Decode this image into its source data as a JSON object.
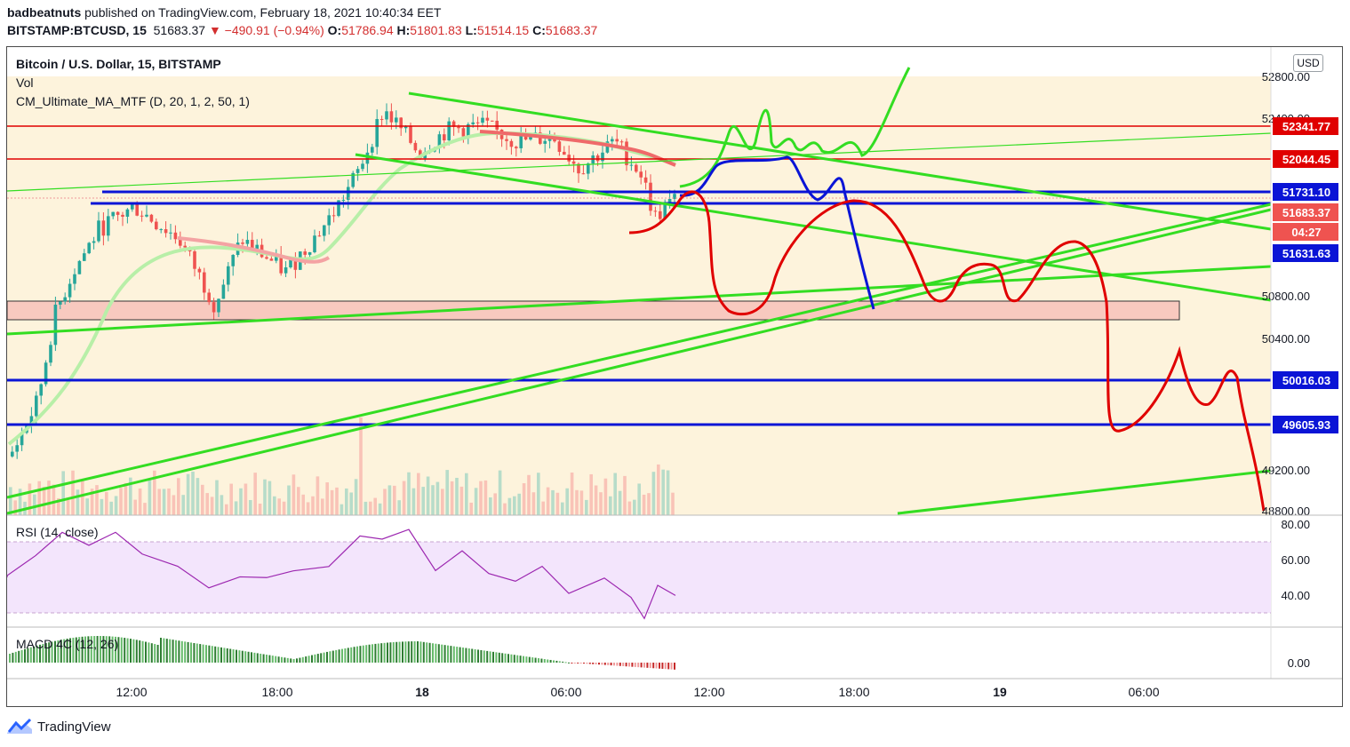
{
  "header": {
    "author": "badbeatnuts",
    "published_text": "published on TradingView.com, February 18, 2021 10:40:34 EET",
    "symbol": "BITSTAMP:BTCUSD, 15",
    "last": "51683.37",
    "change": "▼ −490.91 (−0.94%)",
    "o_label": "O:",
    "o": "51786.94",
    "h_label": "H:",
    "h": "51801.83",
    "l_label": "L:",
    "l": "51514.15",
    "c_label": "C:",
    "c": "51683.37"
  },
  "legend": {
    "title": "Bitcoin / U.S. Dollar, 15, BITSTAMP",
    "vol": "Vol",
    "ma": "CM_Ultimate_MA_MTF (D, 20, 1, 2, 50, 1)",
    "rsi": "RSI (14, close)",
    "macd": "MACD 4C (12, 26)"
  },
  "currency": "USD",
  "footer": {
    "brand": "TradingView"
  },
  "colors": {
    "up": "#26a69a",
    "down": "#ef5350",
    "green_line": "#33dd22",
    "blue_line": "#0a14d6",
    "red_line": "#e00000",
    "zone": "#f8c9bf",
    "bg_band": "#fdf3dc",
    "rsi_fill": "#f3e5fc",
    "rsi_line": "#9c27b0"
  },
  "chart_data": {
    "type": "candlestick",
    "title": "Bitcoin / U.S. Dollar, 15, BITSTAMP",
    "price_ticks": [
      "52800.00",
      "52400.00",
      "50800.00",
      "50400.00",
      "49200.00",
      "48800.00"
    ],
    "y_axis_range": [
      48800,
      52800
    ],
    "x_ticks": [
      "12:00",
      "18:00",
      "18",
      "06:00",
      "12:00",
      "18:00",
      "19",
      "06:00"
    ],
    "level_labels": [
      {
        "label": "52341.77",
        "value": 52341.77,
        "color": "#e00000"
      },
      {
        "label": "52044.45",
        "value": 52044.45,
        "color": "#e00000"
      },
      {
        "label": "51731.10",
        "value": 51731.1,
        "color": "#0a14d6"
      },
      {
        "label": "51683.37",
        "value": 51683.37,
        "color": "#ef5350"
      },
      {
        "label": "04:27",
        "value": 51530,
        "color": "#ef5350"
      },
      {
        "label": "51631.63",
        "value": 51631.63,
        "color": "#0a14d6"
      },
      {
        "label": "50016.03",
        "value": 50016.03,
        "color": "#0a14d6"
      },
      {
        "label": "49605.93",
        "value": 49605.93,
        "color": "#0a14d6"
      }
    ],
    "rsi": {
      "ticks": [
        "80.00",
        "60.00",
        "40.00"
      ],
      "range": [
        20,
        90
      ],
      "band": [
        30,
        70
      ]
    },
    "macd": {
      "ticks": [
        "0.00"
      ]
    }
  }
}
